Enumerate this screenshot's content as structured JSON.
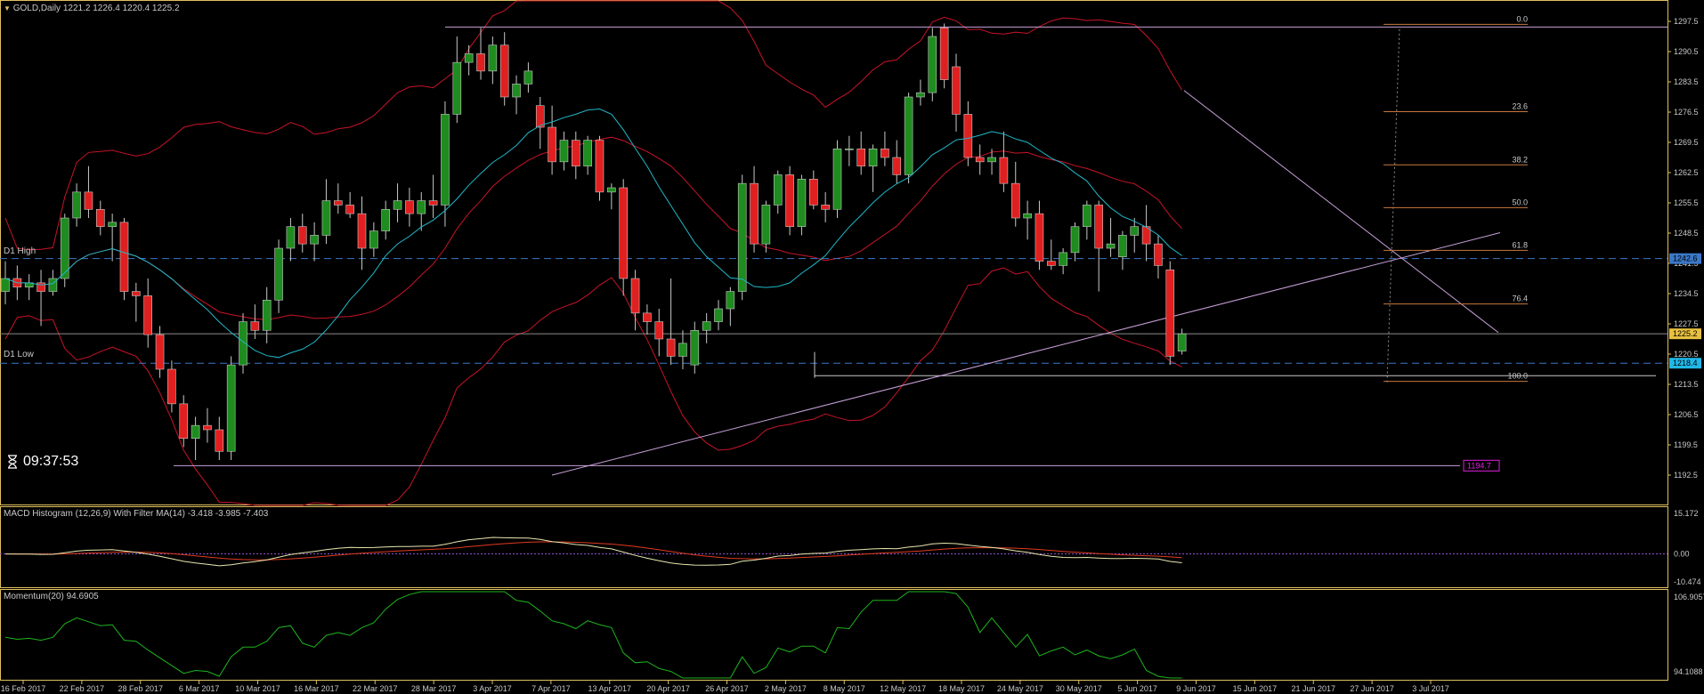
{
  "header": {
    "symbol": "GOLD,Daily",
    "ohlc": "1221.2 1226.4 1220.4 1225.2",
    "server_time": "09:37:53"
  },
  "levels": {
    "d1_high_label": "D1 High",
    "d1_low_label": "D1 Low",
    "d1_high_value": "1242.6",
    "d1_low_value": "1218.4",
    "current_price": "1225.2",
    "support_value": "1194.7"
  },
  "fibonacci": {
    "levels": [
      "0.0",
      "23.6",
      "38.2",
      "50.0",
      "61.8",
      "76.4",
      "100.0"
    ]
  },
  "indicators": {
    "macd_label": "MACD Histogram (12,26,9) With Filter MA(14) -3.418 -3.985 -7.403",
    "momentum_label": "Momentum(20) 94.6905"
  },
  "price_axis": [
    "1297.5",
    "1290.5",
    "1283.5",
    "1276.5",
    "1269.5",
    "1262.5",
    "1255.5",
    "1248.5",
    "1241.5",
    "1234.5",
    "1227.5",
    "1220.5",
    "1213.5",
    "1206.5",
    "1199.5",
    "1192.5"
  ],
  "macd_axis": [
    "15.172",
    "0.00",
    "-10.474"
  ],
  "momentum_axis": [
    "106.9057",
    "94.1088"
  ],
  "time_axis": [
    "16 Feb 2017",
    "22 Feb 2017",
    "28 Feb 2017",
    "6 Mar 2017",
    "10 Mar 2017",
    "16 Mar 2017",
    "22 Mar 2017",
    "28 Mar 2017",
    "3 Apr 2017",
    "7 Apr 2017",
    "13 Apr 2017",
    "20 Apr 2017",
    "26 Apr 2017",
    "2 May 2017",
    "8 May 2017",
    "12 May 2017",
    "18 May 2017",
    "24 May 2017",
    "30 May 2017",
    "5 Jun 2017",
    "9 Jun 2017",
    "15 Jun 2017",
    "21 Jun 2017",
    "27 Jun 2017",
    "3 Jul 2017"
  ],
  "colors": {
    "bull": "#1e8c1e",
    "bear": "#e02020",
    "bollinger": "#c81428",
    "ma": "#20b8c8",
    "level_line": "#3a78c8",
    "trendline": "#c8a0d8",
    "fib": "#c8783c",
    "macd_main": "#e8e8b0",
    "macd_signal": "#e03a20",
    "momentum": "#1eb41e",
    "axis": "#e0c060"
  },
  "chart_data": {
    "type": "candlestick",
    "title": "GOLD,Daily",
    "ylim": [
      1190,
      1300
    ],
    "candles": [
      {
        "o": 1235,
        "h": 1242,
        "l": 1232,
        "c": 1238
      },
      {
        "o": 1238,
        "h": 1241,
        "l": 1233,
        "c": 1236
      },
      {
        "o": 1236,
        "h": 1239,
        "l": 1233,
        "c": 1237
      },
      {
        "o": 1237,
        "h": 1240,
        "l": 1227,
        "c": 1235
      },
      {
        "o": 1235,
        "h": 1240,
        "l": 1234,
        "c": 1238
      },
      {
        "o": 1238,
        "h": 1253,
        "l": 1236,
        "c": 1252
      },
      {
        "o": 1252,
        "h": 1260,
        "l": 1250,
        "c": 1258
      },
      {
        "o": 1258,
        "h": 1264,
        "l": 1252,
        "c": 1254
      },
      {
        "o": 1254,
        "h": 1256,
        "l": 1248,
        "c": 1250
      },
      {
        "o": 1250,
        "h": 1253,
        "l": 1242,
        "c": 1251
      },
      {
        "o": 1251,
        "h": 1252,
        "l": 1233,
        "c": 1235
      },
      {
        "o": 1235,
        "h": 1237,
        "l": 1228,
        "c": 1234
      },
      {
        "o": 1234,
        "h": 1238,
        "l": 1222,
        "c": 1225
      },
      {
        "o": 1225,
        "h": 1227,
        "l": 1215,
        "c": 1217
      },
      {
        "o": 1217,
        "h": 1219,
        "l": 1207,
        "c": 1209
      },
      {
        "o": 1209,
        "h": 1211,
        "l": 1199,
        "c": 1201
      },
      {
        "o": 1201,
        "h": 1206,
        "l": 1196,
        "c": 1204
      },
      {
        "o": 1204,
        "h": 1208,
        "l": 1200,
        "c": 1203
      },
      {
        "o": 1203,
        "h": 1206,
        "l": 1196,
        "c": 1198
      },
      {
        "o": 1198,
        "h": 1220,
        "l": 1196,
        "c": 1218
      },
      {
        "o": 1218,
        "h": 1230,
        "l": 1216,
        "c": 1228
      },
      {
        "o": 1228,
        "h": 1232,
        "l": 1224,
        "c": 1226
      },
      {
        "o": 1226,
        "h": 1236,
        "l": 1223,
        "c": 1233
      },
      {
        "o": 1233,
        "h": 1247,
        "l": 1230,
        "c": 1245
      },
      {
        "o": 1245,
        "h": 1252,
        "l": 1242,
        "c": 1250
      },
      {
        "o": 1250,
        "h": 1253,
        "l": 1244,
        "c": 1246
      },
      {
        "o": 1246,
        "h": 1251,
        "l": 1242,
        "c": 1248
      },
      {
        "o": 1248,
        "h": 1261,
        "l": 1246,
        "c": 1256
      },
      {
        "o": 1256,
        "h": 1260,
        "l": 1253,
        "c": 1255
      },
      {
        "o": 1255,
        "h": 1258,
        "l": 1252,
        "c": 1253
      },
      {
        "o": 1253,
        "h": 1257,
        "l": 1240,
        "c": 1245
      },
      {
        "o": 1245,
        "h": 1251,
        "l": 1243,
        "c": 1249
      },
      {
        "o": 1249,
        "h": 1256,
        "l": 1247,
        "c": 1254
      },
      {
        "o": 1254,
        "h": 1260,
        "l": 1251,
        "c": 1256
      },
      {
        "o": 1256,
        "h": 1259,
        "l": 1250,
        "c": 1253
      },
      {
        "o": 1253,
        "h": 1258,
        "l": 1249,
        "c": 1256
      },
      {
        "o": 1256,
        "h": 1262,
        "l": 1252,
        "c": 1255
      },
      {
        "o": 1255,
        "h": 1279,
        "l": 1250,
        "c": 1276
      },
      {
        "o": 1276,
        "h": 1294,
        "l": 1274,
        "c": 1288
      },
      {
        "o": 1288,
        "h": 1292,
        "l": 1285,
        "c": 1290
      },
      {
        "o": 1290,
        "h": 1296,
        "l": 1284,
        "c": 1286
      },
      {
        "o": 1286,
        "h": 1294,
        "l": 1283,
        "c": 1292
      },
      {
        "o": 1292,
        "h": 1295,
        "l": 1278,
        "c": 1280
      },
      {
        "o": 1280,
        "h": 1285,
        "l": 1276,
        "c": 1283
      },
      {
        "o": 1283,
        "h": 1288,
        "l": 1281,
        "c": 1286
      },
      {
        "o": 1278,
        "h": 1280,
        "l": 1268,
        "c": 1273
      },
      {
        "o": 1273,
        "h": 1278,
        "l": 1262,
        "c": 1265
      },
      {
        "o": 1265,
        "h": 1272,
        "l": 1263,
        "c": 1270
      },
      {
        "o": 1270,
        "h": 1272,
        "l": 1261,
        "c": 1264
      },
      {
        "o": 1264,
        "h": 1271,
        "l": 1262,
        "c": 1270
      },
      {
        "o": 1270,
        "h": 1271,
        "l": 1256,
        "c": 1258
      },
      {
        "o": 1258,
        "h": 1260,
        "l": 1254,
        "c": 1259
      },
      {
        "o": 1259,
        "h": 1261,
        "l": 1234,
        "c": 1238
      },
      {
        "o": 1238,
        "h": 1240,
        "l": 1226,
        "c": 1230
      },
      {
        "o": 1230,
        "h": 1232,
        "l": 1225,
        "c": 1228
      },
      {
        "o": 1228,
        "h": 1231,
        "l": 1220,
        "c": 1224
      },
      {
        "o": 1224,
        "h": 1238,
        "l": 1218,
        "c": 1220
      },
      {
        "o": 1220,
        "h": 1226,
        "l": 1217,
        "c": 1223
      },
      {
        "o": 1218,
        "h": 1228,
        "l": 1216,
        "c": 1226
      },
      {
        "o": 1226,
        "h": 1230,
        "l": 1223,
        "c": 1228
      },
      {
        "o": 1228,
        "h": 1233,
        "l": 1226,
        "c": 1231
      },
      {
        "o": 1231,
        "h": 1236,
        "l": 1227,
        "c": 1235
      },
      {
        "o": 1235,
        "h": 1262,
        "l": 1233,
        "c": 1260
      },
      {
        "o": 1260,
        "h": 1264,
        "l": 1244,
        "c": 1246
      },
      {
        "o": 1246,
        "h": 1256,
        "l": 1244,
        "c": 1255
      },
      {
        "o": 1255,
        "h": 1263,
        "l": 1253,
        "c": 1262
      },
      {
        "o": 1262,
        "h": 1264,
        "l": 1248,
        "c": 1250
      },
      {
        "o": 1250,
        "h": 1262,
        "l": 1248,
        "c": 1261
      },
      {
        "o": 1261,
        "h": 1263,
        "l": 1254,
        "c": 1255
      },
      {
        "o": 1255,
        "h": 1258,
        "l": 1251,
        "c": 1254
      },
      {
        "o": 1254,
        "h": 1270,
        "l": 1252,
        "c": 1268
      },
      {
        "o": 1268,
        "h": 1271,
        "l": 1264,
        "c": 1268
      },
      {
        "o": 1268,
        "h": 1272,
        "l": 1262,
        "c": 1264
      },
      {
        "o": 1264,
        "h": 1269,
        "l": 1258,
        "c": 1268
      },
      {
        "o": 1268,
        "h": 1272,
        "l": 1264,
        "c": 1266
      },
      {
        "o": 1266,
        "h": 1270,
        "l": 1260,
        "c": 1262
      },
      {
        "o": 1262,
        "h": 1281,
        "l": 1260,
        "c": 1280
      },
      {
        "o": 1280,
        "h": 1284,
        "l": 1278,
        "c": 1281
      },
      {
        "o": 1281,
        "h": 1296,
        "l": 1279,
        "c": 1294
      },
      {
        "o": 1296,
        "h": 1297,
        "l": 1282,
        "c": 1284
      },
      {
        "o": 1287,
        "h": 1290,
        "l": 1272,
        "c": 1276
      },
      {
        "o": 1276,
        "h": 1279,
        "l": 1264,
        "c": 1266
      },
      {
        "o": 1266,
        "h": 1269,
        "l": 1262,
        "c": 1265
      },
      {
        "o": 1265,
        "h": 1268,
        "l": 1262,
        "c": 1266
      },
      {
        "o": 1266,
        "h": 1272,
        "l": 1258,
        "c": 1260
      },
      {
        "o": 1260,
        "h": 1265,
        "l": 1250,
        "c": 1252
      },
      {
        "o": 1252,
        "h": 1256,
        "l": 1247,
        "c": 1253
      },
      {
        "o": 1253,
        "h": 1256,
        "l": 1240,
        "c": 1242
      },
      {
        "o": 1242,
        "h": 1247,
        "l": 1240,
        "c": 1241
      },
      {
        "o": 1241,
        "h": 1245,
        "l": 1239,
        "c": 1244
      },
      {
        "o": 1244,
        "h": 1251,
        "l": 1242,
        "c": 1250
      },
      {
        "o": 1250,
        "h": 1256,
        "l": 1247,
        "c": 1255
      },
      {
        "o": 1255,
        "h": 1256,
        "l": 1235,
        "c": 1245
      },
      {
        "o": 1245,
        "h": 1252,
        "l": 1243,
        "c": 1246
      },
      {
        "o": 1243,
        "h": 1249,
        "l": 1240,
        "c": 1248
      },
      {
        "o": 1248,
        "h": 1252,
        "l": 1244,
        "c": 1250
      },
      {
        "o": 1250,
        "h": 1255,
        "l": 1242,
        "c": 1246
      },
      {
        "o": 1246,
        "h": 1248,
        "l": 1238,
        "c": 1241
      },
      {
        "o": 1240,
        "h": 1242,
        "l": 1218,
        "c": 1220
      },
      {
        "o": 1221.2,
        "h": 1226.4,
        "l": 1220.4,
        "c": 1225.2
      }
    ]
  }
}
